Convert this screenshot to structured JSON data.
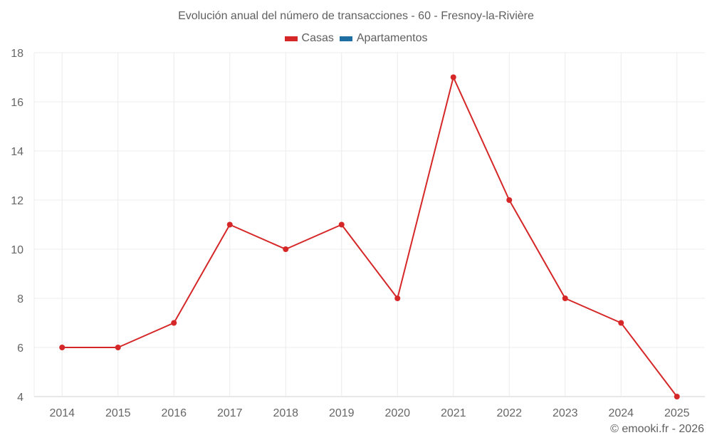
{
  "title": "Evolución anual del número de transacciones - 60 - Fresnoy-la-Rivière",
  "legend": [
    {
      "label": "Casas",
      "color": "#d62728"
    },
    {
      "label": "Apartamentos",
      "color": "#1f6fa3"
    }
  ],
  "credit": "© emooki.fr - 2026",
  "chart_data": {
    "type": "line",
    "title": "Evolución anual del número de transacciones - 60 - Fresnoy-la-Rivière",
    "xlabel": "",
    "ylabel": "",
    "categories": [
      "2014",
      "2015",
      "2016",
      "2017",
      "2018",
      "2019",
      "2020",
      "2021",
      "2022",
      "2023",
      "2024",
      "2025"
    ],
    "series": [
      {
        "name": "Casas",
        "color": "#d62728",
        "values": [
          6,
          6,
          7,
          11,
          10,
          11,
          8,
          17,
          12,
          8,
          7,
          4
        ]
      },
      {
        "name": "Apartamentos",
        "color": "#1f6fa3",
        "values": []
      }
    ],
    "ylim": [
      4,
      18
    ],
    "yticks": [
      4,
      6,
      8,
      10,
      12,
      14,
      16,
      18
    ],
    "grid": true,
    "legend_position": "top"
  }
}
